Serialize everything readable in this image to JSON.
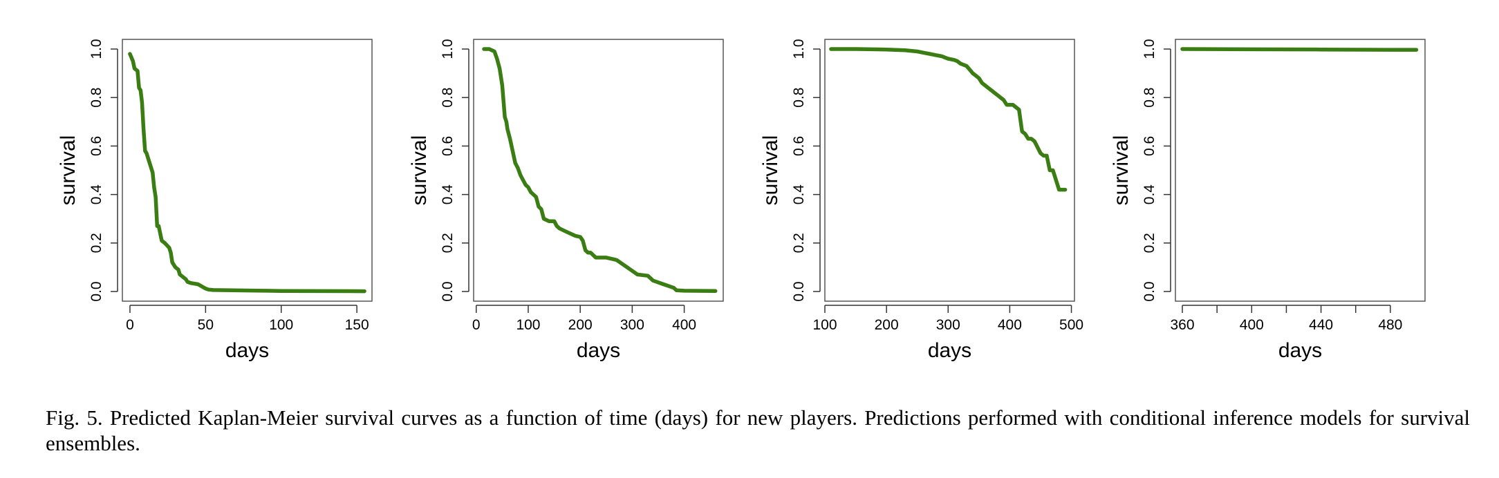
{
  "chart_data": [
    {
      "type": "line",
      "xlabel": "days",
      "ylabel": "survival",
      "xlim": [
        -5,
        160
      ],
      "ylim": [
        0,
        1
      ],
      "xticks": [
        0,
        50,
        100,
        150
      ],
      "yticks": [
        "0.0",
        "0.2",
        "0.4",
        "0.6",
        "0.8",
        "1.0"
      ],
      "grid": false,
      "color": "#3a7d12",
      "series": [
        {
          "x": [
            0,
            2,
            3,
            5,
            6,
            7,
            8,
            9,
            10,
            11,
            13,
            15,
            16,
            17,
            18,
            19,
            21,
            23,
            26,
            27,
            28,
            30,
            32,
            33,
            35,
            37,
            38,
            40,
            45,
            50,
            52,
            55,
            80,
            90,
            100,
            155
          ],
          "y": [
            0.98,
            0.95,
            0.92,
            0.91,
            0.84,
            0.83,
            0.78,
            0.67,
            0.58,
            0.57,
            0.53,
            0.49,
            0.43,
            0.39,
            0.27,
            0.27,
            0.21,
            0.2,
            0.18,
            0.16,
            0.12,
            0.1,
            0.09,
            0.07,
            0.06,
            0.05,
            0.04,
            0.035,
            0.03,
            0.012,
            0.008,
            0.006,
            0.004,
            0.003,
            0.002,
            0.001
          ]
        }
      ]
    },
    {
      "type": "line",
      "xlabel": "days",
      "ylabel": "survival",
      "xlim": [
        -5,
        475
      ],
      "ylim": [
        0,
        1
      ],
      "xticks": [
        0,
        100,
        200,
        300,
        400
      ],
      "yticks": [
        "0.0",
        "0.2",
        "0.4",
        "0.6",
        "0.8",
        "1.0"
      ],
      "grid": false,
      "color": "#3a7d12",
      "series": [
        {
          "x": [
            15,
            25,
            35,
            40,
            45,
            50,
            55,
            58,
            60,
            65,
            70,
            75,
            80,
            85,
            90,
            95,
            100,
            105,
            110,
            115,
            120,
            125,
            130,
            140,
            150,
            155,
            160,
            170,
            180,
            190,
            200,
            205,
            210,
            215,
            220,
            225,
            230,
            250,
            270,
            290,
            310,
            330,
            340,
            360,
            380,
            385,
            400,
            460
          ],
          "y": [
            1.0,
            1.0,
            0.99,
            0.96,
            0.92,
            0.85,
            0.72,
            0.7,
            0.67,
            0.63,
            0.58,
            0.53,
            0.51,
            0.48,
            0.46,
            0.44,
            0.43,
            0.41,
            0.4,
            0.39,
            0.35,
            0.34,
            0.3,
            0.29,
            0.29,
            0.27,
            0.26,
            0.25,
            0.24,
            0.23,
            0.225,
            0.21,
            0.17,
            0.16,
            0.16,
            0.15,
            0.14,
            0.14,
            0.13,
            0.1,
            0.07,
            0.065,
            0.045,
            0.03,
            0.015,
            0.005,
            0.003,
            0.002
          ]
        }
      ]
    },
    {
      "type": "line",
      "xlabel": "days",
      "ylabel": "survival",
      "xlim": [
        100,
        505
      ],
      "ylim": [
        0,
        1
      ],
      "xticks": [
        100,
        200,
        300,
        400,
        500
      ],
      "yticks": [
        "0.0",
        "0.2",
        "0.4",
        "0.6",
        "0.8",
        "1.0"
      ],
      "grid": false,
      "color": "#3a7d12",
      "series": [
        {
          "x": [
            110,
            150,
            200,
            230,
            250,
            260,
            270,
            280,
            290,
            295,
            300,
            310,
            315,
            320,
            330,
            335,
            340,
            345,
            350,
            355,
            360,
            365,
            370,
            375,
            380,
            385,
            390,
            395,
            400,
            405,
            410,
            415,
            420,
            425,
            430,
            435,
            440,
            450,
            455,
            460,
            465,
            470,
            480,
            490
          ],
          "y": [
            1.0,
            1.0,
            0.998,
            0.995,
            0.99,
            0.985,
            0.98,
            0.975,
            0.97,
            0.965,
            0.96,
            0.955,
            0.95,
            0.94,
            0.93,
            0.915,
            0.9,
            0.89,
            0.88,
            0.86,
            0.85,
            0.84,
            0.83,
            0.82,
            0.81,
            0.8,
            0.79,
            0.77,
            0.77,
            0.77,
            0.76,
            0.75,
            0.66,
            0.65,
            0.63,
            0.63,
            0.62,
            0.57,
            0.56,
            0.56,
            0.5,
            0.5,
            0.42,
            0.42
          ]
        }
      ]
    },
    {
      "type": "line",
      "xlabel": "days",
      "ylabel": "survival",
      "xlim": [
        356,
        500
      ],
      "ylim": [
        0,
        1
      ],
      "xticks": [
        360,
        400,
        440,
        480
      ],
      "minor_xticks": [
        380,
        420,
        460
      ],
      "yticks": [
        "0.0",
        "0.2",
        "0.4",
        "0.6",
        "0.8",
        "1.0"
      ],
      "grid": false,
      "color": "#3a7d12",
      "series": [
        {
          "x": [
            360,
            400,
            440,
            480,
            495
          ],
          "y": [
            1.0,
            0.999,
            0.998,
            0.997,
            0.997
          ]
        }
      ]
    }
  ],
  "caption": "Fig. 5.  Predicted Kaplan-Meier survival curves as a function of time (days) for new players. Predictions performed with conditional inference models for survival ensembles."
}
